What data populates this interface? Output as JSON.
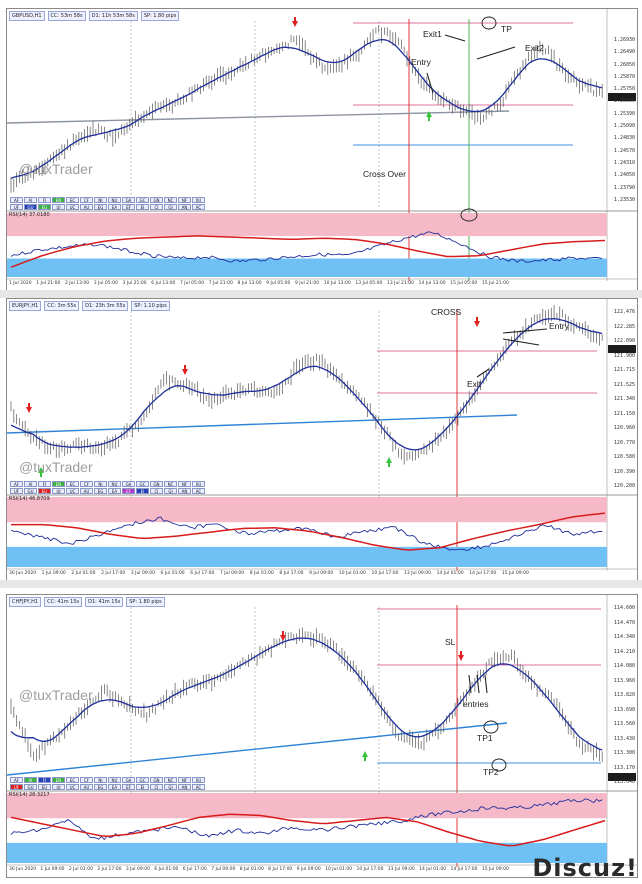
{
  "colors": {
    "price": "#555555",
    "ma": "#1f2f9b",
    "trend": "#8b93a0",
    "trend_blue": "#2d82d6",
    "rsi_ma": "#d81b1b",
    "rsi": "#1f2f9b",
    "rsi_high": "#f6b9c8",
    "rsi_low": "#6fc1f5",
    "hline_pink": "#e06fa0",
    "hline_blue": "#3d8fe3",
    "vline_red": "#e02424",
    "vline_green": "#3cb043",
    "arrow_red": "#e32020",
    "arrow_green": "#36c43c"
  },
  "watermark": "@tuxTrader",
  "footer_logo": "Discuz!",
  "panels": [
    {
      "name": "gbpusd",
      "header": [
        "GBPUSD,H1",
        "CC: 53m 58s",
        "D1: 11h 53m 58s",
        "SP: 1.80 pips"
      ],
      "annotations": {
        "exit1": "Exit1",
        "tp": "TP",
        "exit2": "Exit2",
        "entry": "Entry",
        "cross_over": "Cross Over"
      },
      "price_ticks": [
        "1.26930",
        "1.26490",
        "1.26050",
        "1.25870",
        "1.25750",
        "1.25550",
        "1.25390",
        "1.25090",
        "1.24830",
        "1.24570",
        "1.24310",
        "1.24050",
        "1.23790",
        "1.23530"
      ],
      "current_price": "1.25450",
      "rsi_label": "RSI(14) 37.0180",
      "rsi_max": "100",
      "rsi_min": "0",
      "dates": [
        "1 Jul 2020",
        "1 Jul 21:00",
        "2 Jul 13:00",
        "3 Jul 05:00",
        "3 Jul 21:00",
        "6 Jul 13:00",
        "7 Jul 05:00",
        "7 Jul 21:00",
        "8 Jul 13:00",
        "9 Jul 05:00",
        "9 Jul 21:00",
        "10 Jul 13:00",
        "13 Jul 05:00",
        "13 Jul 21:00",
        "14 Jul 13:00",
        "15 Jul 05:00",
        "15 Jul 21:00"
      ],
      "pairs_row1": [
        "AF",
        "AJ",
        "FJ",
        "EN",
        "EC",
        "CF",
        "NJ",
        "NU",
        "GA",
        "GC",
        "GN",
        "NC",
        "NF",
        "XU"
      ],
      "pairs_row2": [
        "UF",
        "GU",
        "EU",
        "UJ",
        "UC",
        "AU",
        "EG",
        "EA",
        "EF",
        "EJ",
        "CJ",
        "GJ",
        "AN",
        "AC"
      ]
    },
    {
      "name": "eurjpy",
      "header": [
        "EURJPY,H1",
        "CC: 3m 55s",
        "D1: 23h 3m 55s",
        "SP: 1.10 pips"
      ],
      "annotations": {
        "cross": "CROSS",
        "entry": "Entry",
        "exit": "Exit"
      },
      "price_ticks": [
        "122.476",
        "122.285",
        "122.090",
        "121.900",
        "121.715",
        "121.525",
        "121.340",
        "121.150",
        "120.960",
        "120.770",
        "120.580",
        "120.390",
        "120.200"
      ],
      "current_price": "121.924",
      "rsi_label": "RSI(14) 46.8709",
      "rsi_max": "100",
      "rsi_min": "0",
      "dates": [
        "30 Jun 2020",
        "1 Jul 09:00",
        "2 Jul 01:00",
        "2 Jul 17:00",
        "3 Jul 09:00",
        "6 Jul 01:00",
        "6 Jul 17:00",
        "7 Jul 09:00",
        "8 Jul 01:00",
        "8 Jul 17:00",
        "9 Jul 09:00",
        "10 Jul 01:00",
        "10 Jul 17:00",
        "13 Jul 09:00",
        "14 Jul 01:00",
        "14 Jul 17:00",
        "15 Jul 09:00"
      ],
      "pairs_row1": [
        "AF",
        "AJ",
        "FJ",
        "EN",
        "EC",
        "CF",
        "NJ",
        "NU",
        "GA",
        "GC",
        "GN",
        "NC",
        "NF",
        "XU"
      ],
      "pairs_row2": [
        "UF",
        "GU",
        "EU",
        "UJ",
        "UC",
        "AU",
        "EG",
        "EA",
        "EF",
        "EJ",
        "CJ",
        "GJ",
        "AN",
        "AC"
      ]
    },
    {
      "name": "chfjpy",
      "header": [
        "CHFJPY,H1",
        "CC: 41m 15s",
        "D1: 41m 15s",
        "SP: 1.80 pips"
      ],
      "annotations": {
        "sl": "SL",
        "entries": "entries",
        "tp1": "TP1",
        "tp2": "TP2"
      },
      "price_ticks": [
        "114.600",
        "114.470",
        "114.340",
        "114.210",
        "114.080",
        "113.960",
        "113.820",
        "113.690",
        "113.560",
        "113.430",
        "113.300",
        "113.170",
        "113.040"
      ],
      "current_price": "113.130",
      "rsi_label": "RSI(14) 28.3217",
      "rsi_max": "100",
      "rsi_min": "0",
      "dates": [
        "30 Jun 2020",
        "1 Jul 09:00",
        "2 Jul 01:00",
        "2 Jul 17:00",
        "3 Jul 09:00",
        "6 Jul 01:00",
        "6 Jul 17:00",
        "7 Jul 09:00",
        "8 Jul 01:00",
        "8 Jul 17:00",
        "9 Jul 09:00",
        "10 Jul 01:00",
        "10 Jul 17:00",
        "13 Jul 09:00",
        "14 Jul 01:00",
        "14 Jul 17:00",
        "15 Jul 09:00"
      ],
      "pairs_row1": [
        "AF",
        "AJ",
        "FJ",
        "EN",
        "EC",
        "CF",
        "NJ",
        "NU",
        "GA",
        "GC",
        "GN",
        "NC",
        "NF",
        "XU"
      ],
      "pairs_row2": [
        "UF",
        "GU",
        "EU",
        "UJ",
        "UC",
        "AU",
        "EG",
        "EA",
        "EF",
        "EJ",
        "CJ",
        "GJ",
        "AN",
        "AC"
      ]
    }
  ]
}
